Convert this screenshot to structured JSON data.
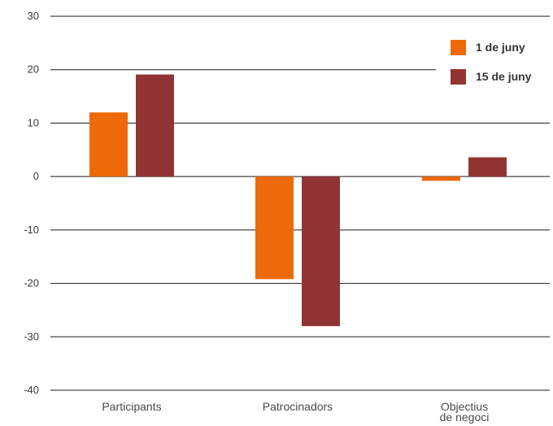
{
  "chart_data": {
    "type": "bar",
    "categories": [
      "Participants",
      "Patrocinadors",
      "Objectius de negoci"
    ],
    "series": [
      {
        "name": "1 de juny",
        "values": [
          12,
          -19.2,
          -0.8
        ],
        "color": "#ee6a08"
      },
      {
        "name": "15 de juny",
        "values": [
          19.1,
          -28,
          3.6
        ],
        "color": "#933434"
      }
    ],
    "ylim": [
      -40,
      30
    ],
    "yticks": [
      30,
      20,
      10,
      0,
      -10,
      -20,
      -30,
      -40
    ],
    "grid": true,
    "legend": "top-right",
    "title": "",
    "xlabel": "",
    "ylabel": ""
  }
}
